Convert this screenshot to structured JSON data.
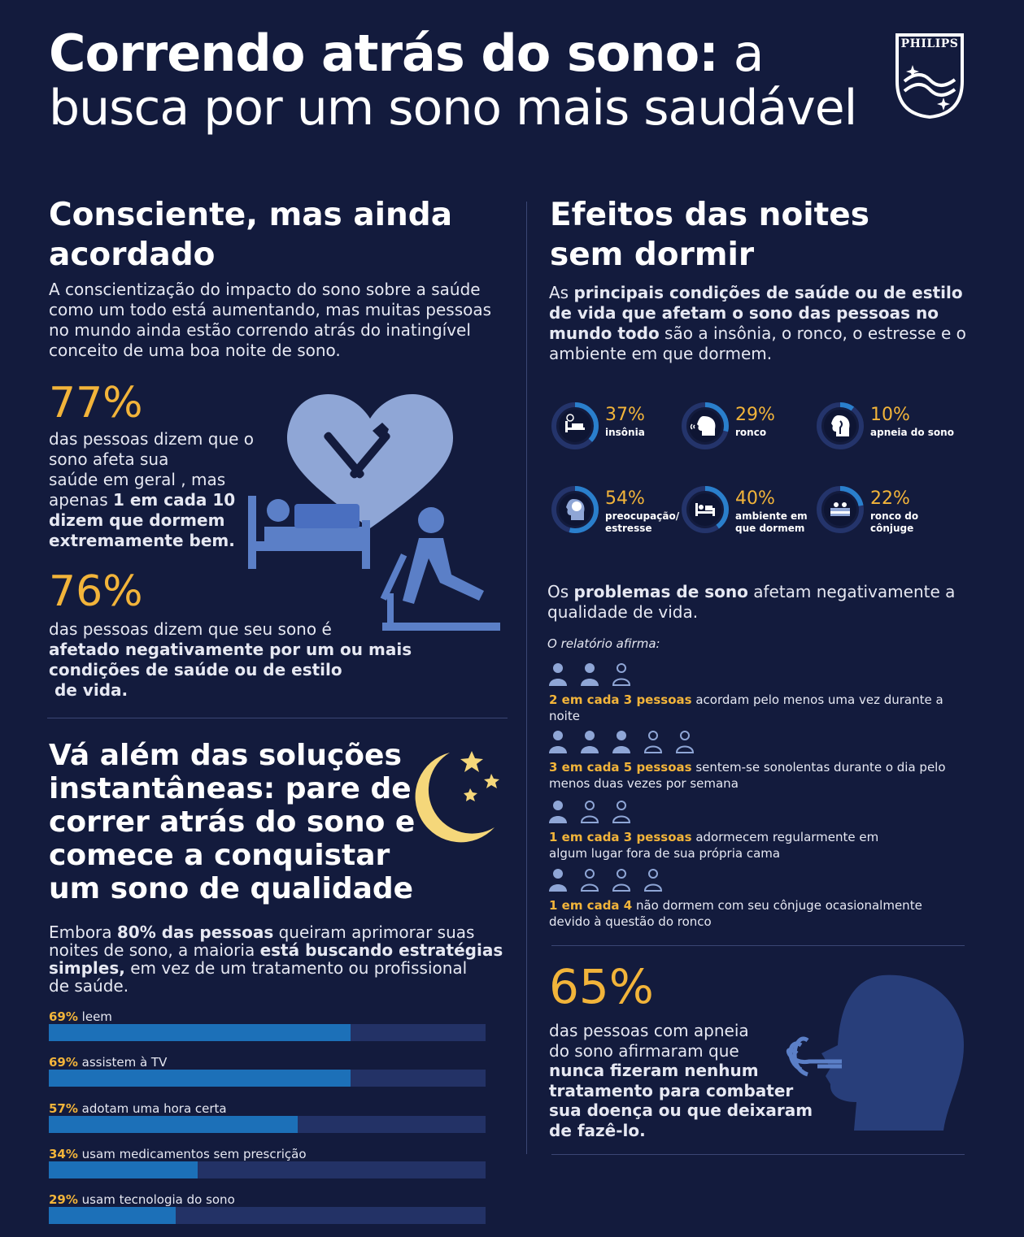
{
  "header": {
    "title_bold": "Correndo atrás do sono:",
    "title_light": " a",
    "title_line2": "busca por um sono mais saudável",
    "brand": "PHILIPS"
  },
  "left": {
    "heading1_line1": "Consciente, mas ainda",
    "heading1_line2": "acordado",
    "intro": [
      "A conscientização do impacto do sono sobre a saúde",
      "como um todo está aumentando, mas muitas pessoas",
      "no mundo ainda estão correndo atrás do inatingível",
      "conceito de uma boa noite de sono."
    ],
    "stat1_value": "77%",
    "stat1_lines": [
      "das pessoas dizem que o",
      "sono afeta sua",
      "saúde em geral , mas"
    ],
    "stat1_mid_pre": "apenas ",
    "stat1_mid_bold": "1 em cada 10",
    "stat1_bold_lines": [
      "dizem que dormem",
      "extremamente bem."
    ],
    "stat2_value": "76%",
    "stat2_line1": "das pessoas dizem que seu sono é",
    "stat2_bold_lines": [
      "afetado negativamente por um ou mais",
      "condições de saúde ou de estilo",
      " de vida."
    ],
    "heading2_lines": [
      "Vá além das soluções",
      "instantâneas: pare de",
      "correr atrás do sono e",
      "comece a conquistar",
      "um sono de qualidade"
    ],
    "p2_a": "Embora ",
    "p2_b": "80% das pessoas",
    "p2_c": " queiram aprimorar suas",
    "p2_line2_a": "noites de sono, a maioria ",
    "p2_line2_b": "está buscando estratégias",
    "p2_line3_a": "simples,",
    "p2_line3_b": " em vez de um tratamento ou profissional",
    "p2_line4": "de saúde.",
    "bars": [
      {
        "pct": "69%",
        "label": " leem",
        "value": 69
      },
      {
        "pct": "69%",
        "label": " assistem à TV",
        "value": 69
      },
      {
        "pct": "57%",
        "label": " adotam uma hora certa",
        "value": 57
      },
      {
        "pct": "34%",
        "label": " usam medicamentos sem prescrição",
        "value": 34
      },
      {
        "pct": "29%",
        "label": " usam tecnologia do sono",
        "value": 29
      }
    ]
  },
  "right": {
    "heading_line1": "Efeitos das noites",
    "heading_line2": "sem dormir",
    "intro_a": "As ",
    "intro_b1": "principais condições de saúde ou de estilo",
    "intro_b2": "de vida que afetam o sono das pessoas no",
    "intro_b3": "mundo todo",
    "intro_c": " são a insônia, o ronco, o estresse e o",
    "intro_d": "ambiente em que dormem.",
    "donuts": [
      {
        "pct": "37%",
        "cap1": "insônia",
        "cap2": "",
        "value": 37,
        "icon": "bed-clock-icon"
      },
      {
        "pct": "29%",
        "cap1": "ronco",
        "cap2": "",
        "value": 29,
        "icon": "snoring-head-icon"
      },
      {
        "pct": "10%",
        "cap1": "apneia do sono",
        "cap2": "",
        "value": 10,
        "icon": "airway-head-icon"
      },
      {
        "pct": "54%",
        "cap1": "preocupação/",
        "cap2": "estresse",
        "value": 54,
        "icon": "brain-head-icon"
      },
      {
        "pct": "40%",
        "cap1": "ambiente em",
        "cap2": "que dormem",
        "value": 40,
        "icon": "bedroom-icon"
      },
      {
        "pct": "22%",
        "cap1": "ronco do",
        "cap2": "cônjuge",
        "value": 22,
        "icon": "couple-bed-icon"
      }
    ],
    "problems_a": "Os ",
    "problems_b": "problemas de sono",
    "problems_c": " afetam negativamente a",
    "problems_d": "qualidade de vida.",
    "report": "O relatório afirma:",
    "people_stats": [
      {
        "filled": 2,
        "total": 3,
        "bold": "2 em cada 3 pessoas",
        "rest": " acordam pelo menos uma vez durante a",
        "line2": "noite"
      },
      {
        "filled": 3,
        "total": 5,
        "bold": "3 em cada 5 pessoas",
        "rest": " sentem-se sonolentas durante o dia pelo",
        "line2": "menos duas vezes por semana"
      },
      {
        "filled": 1,
        "total": 3,
        "bold": "1 em cada 3 pessoas",
        "rest": " adormecem regularmente em",
        "line2": "algum lugar fora de sua própria cama"
      },
      {
        "filled": 1,
        "total": 4,
        "bold": "1 em cada 4",
        "rest": " não dormem com seu cônjuge ocasionalmente",
        "line2": "devido à questão do ronco"
      }
    ],
    "stat_value": "65%",
    "stat_lines": [
      "das pessoas com apneia",
      "do sono afirmaram que"
    ],
    "stat_bold_lines": [
      "nunca fizeram nenhum",
      "tratamento para combater",
      "sua doença ou que deixaram",
      "de fazê-lo."
    ]
  },
  "colors": {
    "background": "#131b3d",
    "accent": "#f2b43a",
    "bar": "#1c70b8",
    "icon": "#5b7fc7"
  }
}
